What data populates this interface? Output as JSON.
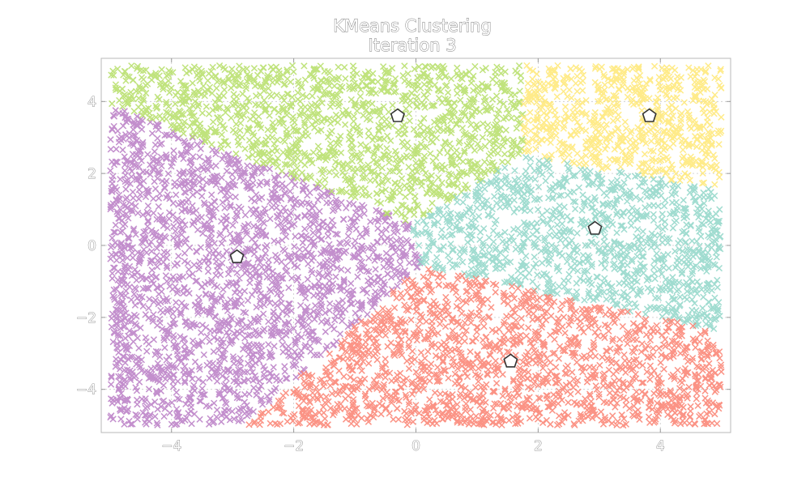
{
  "chart_data": {
    "type": "scatter",
    "title": "KMeans Clustering",
    "subtitle": "Iteration 3",
    "xlabel": "",
    "ylabel": "",
    "xlim": [
      -5.15,
      5.15
    ],
    "ylim": [
      -5.2,
      5.2
    ],
    "x_ticks": [
      -4,
      -2,
      0,
      2,
      4
    ],
    "y_ticks": [
      -4,
      -2,
      0,
      2,
      4
    ],
    "x_tick_labels": [
      "−4",
      "−2",
      "0",
      "2",
      "4"
    ],
    "y_tick_labels": [
      "−4",
      "−2",
      "0",
      "2",
      "4"
    ],
    "grid": true,
    "legend": "none",
    "marker": "x",
    "point_domain": {
      "x": [
        -5.0,
        5.0
      ],
      "y": [
        -5.0,
        5.0
      ]
    },
    "clusters": [
      {
        "color": "#b87bc4",
        "centroid": {
          "x": -2.93,
          "y": -0.32
        }
      },
      {
        "color": "#b5de66",
        "centroid": {
          "x": -0.3,
          "y": 3.6
        }
      },
      {
        "color": "#ffe874",
        "centroid": {
          "x": 3.82,
          "y": 3.6
        }
      },
      {
        "color": "#8fd6c8",
        "centroid": {
          "x": 2.93,
          "y": 0.47
        }
      },
      {
        "color": "#fa8070",
        "centroid": {
          "x": 1.55,
          "y": -3.22
        }
      }
    ]
  }
}
